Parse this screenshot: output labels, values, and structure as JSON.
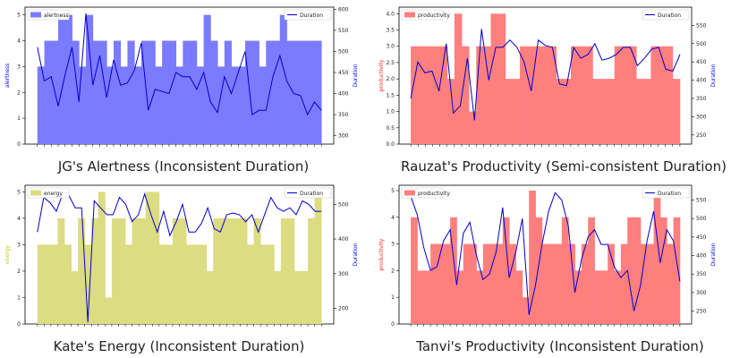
{
  "charts": [
    {
      "caption": "JG's Alertness (Inconsistent Duration)",
      "chart_data": {
        "type": "bar",
        "bar_series": {
          "name": "alertness",
          "color": "#7b7bff",
          "values": [
            3,
            4,
            4,
            5,
            5,
            4,
            3,
            5,
            4,
            4,
            3,
            4,
            3,
            4,
            3,
            4,
            4,
            3,
            4,
            4,
            3,
            4,
            4,
            3,
            5,
            4,
            3,
            4,
            3,
            3,
            4,
            4,
            3,
            4,
            4,
            5,
            4,
            4,
            4,
            4,
            4
          ]
        },
        "line_series": {
          "name": "Duration",
          "color": "#0000cc",
          "values": [
            510,
            430,
            440,
            370,
            445,
            510,
            380,
            590,
            420,
            490,
            390,
            480,
            420,
            425,
            455,
            520,
            360,
            410,
            405,
            400,
            450,
            440,
            440,
            410,
            450,
            380,
            355,
            440,
            400,
            450,
            500,
            350,
            360,
            360,
            440,
            490,
            430,
            400,
            395,
            350,
            380,
            360
          ]
        },
        "ylabel": "alertness",
        "ylabel2": "Duration",
        "ylim": [
          0,
          5.3
        ],
        "ylim2": [
          280,
          605
        ],
        "yticks": [
          0,
          1,
          2,
          3,
          4,
          5
        ],
        "yticks2": [
          300,
          350,
          400,
          450,
          500,
          550,
          600
        ],
        "legend": "top-left",
        "legend2": "top-right"
      }
    },
    {
      "caption": "Rauzat's Productivity (Semi-consistent Duration)",
      "chart_data": {
        "type": "bar",
        "bar_series": {
          "name": "productivity",
          "color": "#ff7f7f",
          "values": [
            3,
            3,
            3,
            3,
            3,
            2,
            4,
            3,
            1,
            3,
            3,
            4,
            4,
            2,
            2,
            3,
            3,
            3,
            3,
            3,
            2,
            2,
            3,
            3,
            3,
            2,
            2,
            2,
            3,
            3,
            3,
            2,
            2,
            3,
            3,
            3,
            2
          ]
        },
        "line_series": {
          "name": "Duration",
          "color": "#0000cc",
          "values": [
            350,
            450,
            420,
            425,
            370,
            500,
            310,
            330,
            460,
            290,
            540,
            400,
            490,
            490,
            510,
            490,
            450,
            370,
            510,
            495,
            490,
            390,
            385,
            490,
            460,
            470,
            500,
            455,
            460,
            470,
            490,
            490,
            440,
            460,
            485,
            490,
            430,
            425,
            470
          ]
        },
        "ylabel": "productivity",
        "ylabel2": "Duration",
        "ylim": [
          0,
          4.2
        ],
        "ylim2": [
          225,
          600
        ],
        "yticks": [
          0.0,
          0.5,
          1.0,
          1.5,
          2.0,
          2.5,
          3.0,
          3.5,
          4.0
        ],
        "yticks2": [
          250,
          300,
          350,
          400,
          450,
          500,
          550
        ],
        "legend": "top-left",
        "legend2": "top-right"
      }
    },
    {
      "caption": "Kate's Energy (Inconsistent Duration)",
      "chart_data": {
        "type": "bar",
        "bar_series": {
          "name": "energy",
          "color": "#dcdc82",
          "values": [
            3,
            3,
            3,
            4,
            3,
            2,
            4,
            3,
            4,
            5,
            1,
            4,
            4,
            3,
            4,
            4,
            5,
            5,
            3,
            3,
            4,
            4,
            3,
            3,
            3,
            2,
            4,
            4,
            4,
            4,
            4,
            3,
            4,
            3,
            3,
            2,
            4,
            4,
            2,
            2,
            4,
            5
          ]
        },
        "line_series": {
          "name": "Duration",
          "color": "#0000cc",
          "values": [
            420,
            520,
            505,
            480,
            530,
            525,
            490,
            490,
            160,
            510,
            490,
            470,
            470,
            520,
            500,
            450,
            470,
            530,
            470,
            420,
            480,
            410,
            450,
            500,
            420,
            420,
            445,
            490,
            430,
            420,
            470,
            475,
            470,
            450,
            470,
            420,
            470,
            520,
            490,
            480,
            490,
            470,
            510,
            500,
            480,
            480
          ]
        },
        "ylabel": "energy",
        "ylabel2": "Duration",
        "ylim": [
          0,
          5.25
        ],
        "ylim2": [
          155,
          555
        ],
        "yticks": [
          0,
          1,
          2,
          3,
          4,
          5
        ],
        "yticks2": [
          200,
          300,
          400,
          500
        ],
        "legend": "top-left",
        "legend2": "top-right"
      }
    },
    {
      "caption": "Tanvi's Productivity (Inconsistent Duration)",
      "chart_data": {
        "type": "bar",
        "bar_series": {
          "name": "productivity",
          "color": "#ff7f7f",
          "values": [
            4,
            2,
            2,
            3,
            3,
            3,
            4,
            2,
            3,
            3,
            2,
            3,
            3,
            3,
            4,
            3,
            2,
            1,
            5,
            4,
            3,
            3,
            3,
            4,
            3,
            2,
            3,
            4,
            2,
            2,
            3,
            2,
            3,
            4,
            4,
            3,
            3,
            5,
            4,
            3,
            4
          ]
        },
        "line_series": {
          "name": "Duration",
          "color": "#0000cc",
          "values": [
            560,
            510,
            420,
            360,
            370,
            440,
            470,
            320,
            460,
            490,
            400,
            335,
            350,
            410,
            530,
            340,
            410,
            500,
            240,
            320,
            430,
            520,
            570,
            550,
            480,
            300,
            390,
            450,
            470,
            430,
            430,
            370,
            340,
            360,
            250,
            320,
            440,
            520,
            380,
            470,
            440,
            330
          ]
        },
        "ylabel": "productivity",
        "ylabel2": "Duration",
        "ylim": [
          0,
          5.2
        ],
        "ylim2": [
          215,
          590
        ],
        "yticks": [
          0,
          1,
          2,
          3,
          4,
          5
        ],
        "yticks2": [
          250,
          300,
          350,
          400,
          450,
          500,
          550
        ],
        "legend": "top-left",
        "legend2": "top-right"
      }
    }
  ]
}
